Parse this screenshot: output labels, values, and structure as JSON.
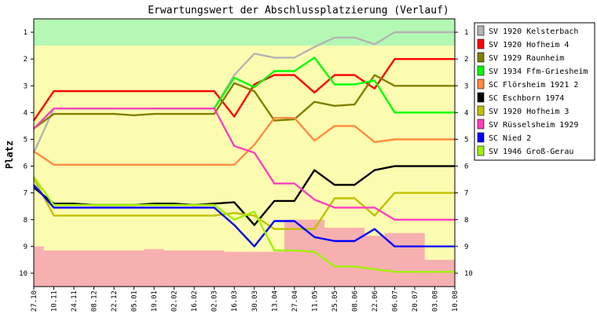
{
  "chart_data": {
    "type": "line",
    "title": "Erwartungswert der Abschlussplatzierung (Verlauf)",
    "ylabel": "Platz",
    "xlabel": "",
    "ylim": [
      0.5,
      10.5
    ],
    "y_reversed": true,
    "y_ticks": [
      "1",
      "2",
      "3",
      "4",
      "5",
      "6",
      "7",
      "8",
      "9",
      "10"
    ],
    "categories": [
      "27.10",
      "10.11",
      "24.11",
      "08.12",
      "22.12",
      "05.01",
      "19.01",
      "02.02",
      "16.02",
      "02.03",
      "16.03",
      "30.03",
      "13.04",
      "27.04",
      "11.05",
      "25.05",
      "08.06",
      "22.06",
      "06.07",
      "20.07",
      "03.08",
      "10.08"
    ],
    "bands": [
      {
        "from": 0.5,
        "to": 1.5,
        "color": "#b3f8b3"
      },
      {
        "from": 1.5,
        "to": 10.5,
        "color": "#fcfcb0"
      }
    ],
    "relegation_area": {
      "color": "#f7b0b0",
      "top": [
        9.0,
        9.15,
        9.15,
        9.15,
        9.15,
        9.15,
        9.1,
        9.15,
        9.15,
        9.15,
        9.2,
        9.2,
        9.2,
        8.0,
        8.0,
        8.3,
        8.3,
        8.6,
        8.5,
        8.5,
        9.5,
        9.5
      ]
    },
    "legend_position": "right",
    "grid": false,
    "series": [
      {
        "name": "SV 1920 Kelsterbach",
        "color": "#b4b4b4",
        "values": [
          5.5,
          3.85,
          3.85,
          3.85,
          3.85,
          3.85,
          3.85,
          3.85,
          3.85,
          3.85,
          2.6,
          1.8,
          1.95,
          1.95,
          1.55,
          1.2,
          1.2,
          1.45,
          1.0,
          1.0,
          1.0,
          1.0
        ]
      },
      {
        "name": "SV 1920 Hofheim 4",
        "color": "#ff0000",
        "values": [
          4.3,
          3.2,
          3.2,
          3.2,
          3.2,
          3.2,
          3.2,
          3.2,
          3.2,
          3.2,
          4.15,
          2.95,
          2.6,
          2.6,
          3.25,
          2.6,
          2.6,
          3.1,
          2.0,
          2.0,
          2.0,
          2.0
        ]
      },
      {
        "name": "SV 1929 Raunheim",
        "color": "#808000",
        "values": [
          4.6,
          4.05,
          4.05,
          4.05,
          4.05,
          4.1,
          4.05,
          4.05,
          4.05,
          4.05,
          2.9,
          3.2,
          4.3,
          4.25,
          3.6,
          3.75,
          3.7,
          2.6,
          3.0,
          3.0,
          3.0,
          3.0
        ]
      },
      {
        "name": "SV 1934 Ffm-Griesheim",
        "color": "#00ff00",
        "values": [
          4.6,
          3.85,
          3.85,
          3.85,
          3.85,
          3.85,
          3.85,
          3.85,
          3.85,
          3.85,
          2.7,
          3.05,
          2.45,
          2.45,
          1.95,
          2.95,
          2.95,
          2.8,
          4.0,
          4.0,
          4.0,
          4.0
        ]
      },
      {
        "name": "SC Flörsheim 1921 2",
        "color": "#ff8c40",
        "values": [
          5.45,
          5.95,
          5.95,
          5.95,
          5.95,
          5.95,
          5.95,
          5.95,
          5.95,
          5.95,
          5.95,
          5.2,
          4.2,
          4.2,
          5.05,
          4.5,
          4.5,
          5.1,
          5.0,
          5.0,
          5.0,
          5.0
        ]
      },
      {
        "name": "SC Eschborn 1974",
        "color": "#000000",
        "values": [
          6.8,
          7.4,
          7.4,
          7.45,
          7.45,
          7.45,
          7.4,
          7.4,
          7.45,
          7.4,
          7.35,
          8.2,
          7.3,
          7.3,
          6.15,
          6.7,
          6.7,
          6.15,
          6.0,
          6.0,
          6.0,
          6.0
        ]
      },
      {
        "name": "SV 1920 Hofheim 3",
        "color": "#c0c000",
        "values": [
          6.45,
          7.85,
          7.85,
          7.85,
          7.85,
          7.85,
          7.85,
          7.85,
          7.85,
          7.85,
          7.75,
          7.85,
          8.35,
          8.35,
          8.35,
          7.2,
          7.2,
          7.85,
          7.0,
          7.0,
          7.0,
          7.0
        ]
      },
      {
        "name": "SV Rüsselsheim 1929",
        "color": "#ff40c0",
        "values": [
          4.6,
          3.85,
          3.85,
          3.85,
          3.85,
          3.85,
          3.85,
          3.85,
          3.85,
          3.85,
          5.25,
          5.5,
          6.65,
          6.65,
          7.25,
          7.55,
          7.55,
          7.55,
          8.0,
          8.0,
          8.0,
          8.0
        ]
      },
      {
        "name": "SC Nied 2",
        "color": "#0000ff",
        "values": [
          6.7,
          7.55,
          7.55,
          7.55,
          7.55,
          7.55,
          7.55,
          7.55,
          7.55,
          7.55,
          8.2,
          9.0,
          8.05,
          8.05,
          8.65,
          8.8,
          8.8,
          8.35,
          9.0,
          9.0,
          9.0,
          9.0
        ]
      },
      {
        "name": "SV 1946 Groß-Gerau",
        "color": "#a0f000",
        "values": [
          6.4,
          7.45,
          7.45,
          7.45,
          7.45,
          7.45,
          7.45,
          7.45,
          7.45,
          7.45,
          8.0,
          7.7,
          9.15,
          9.15,
          9.2,
          9.75,
          9.75,
          9.85,
          9.95,
          9.95,
          9.95,
          9.95
        ]
      }
    ]
  }
}
